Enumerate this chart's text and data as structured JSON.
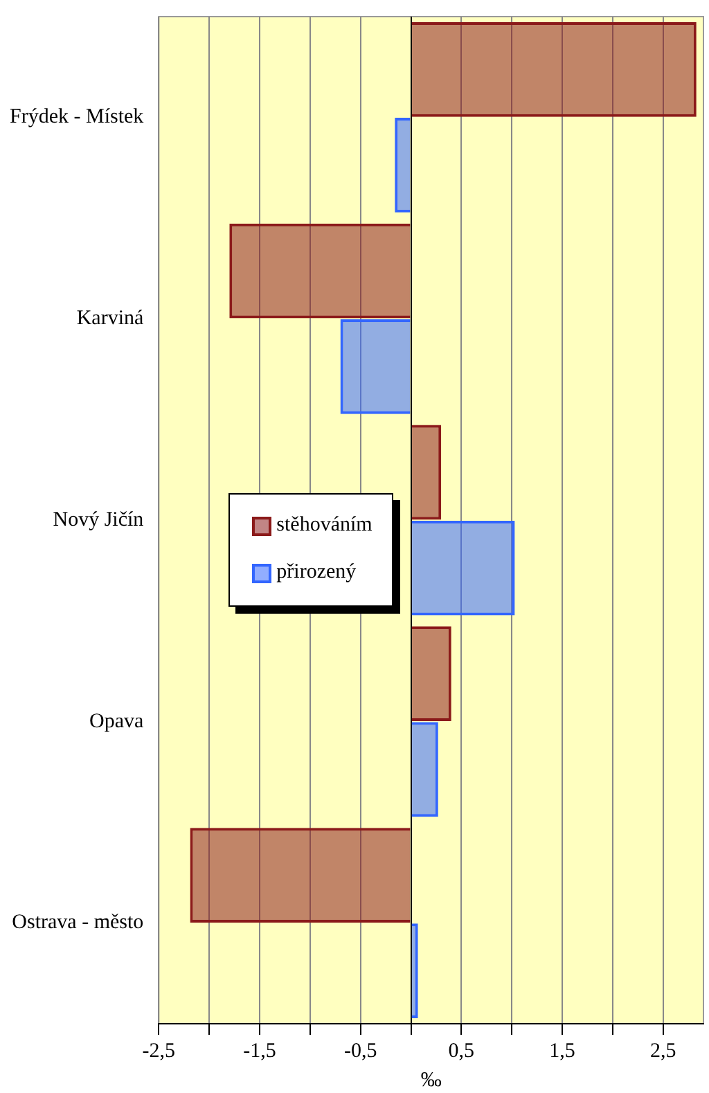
{
  "chart_data": {
    "type": "bar",
    "orientation": "horizontal",
    "xlabel": "‰",
    "categories": [
      "Frýdek - Místek",
      "Karviná",
      "Nový Jičín",
      "Opava",
      "Ostrava - město"
    ],
    "series": [
      {
        "name": "stěhováním",
        "color": "#8b1a1a",
        "values": [
          2.83,
          -1.8,
          0.3,
          0.4,
          -2.19
        ]
      },
      {
        "name": "přirozený",
        "color": "#3366ff",
        "values": [
          -0.16,
          -0.7,
          1.03,
          0.27,
          0.07
        ]
      }
    ],
    "xlim": [
      -2.5,
      2.9
    ],
    "xticks": [
      {
        "value": -2.5,
        "label": "-2,5"
      },
      {
        "value": -2,
        "label": null
      },
      {
        "value": -1.5,
        "label": "-1,5"
      },
      {
        "value": -1,
        "label": null
      },
      {
        "value": -0.5,
        "label": "-0,5"
      },
      {
        "value": 0,
        "label": null
      },
      {
        "value": 0.5,
        "label": "0,5"
      },
      {
        "value": 1,
        "label": null
      },
      {
        "value": 1.5,
        "label": "1,5"
      },
      {
        "value": 2,
        "label": null
      },
      {
        "value": 2.5,
        "label": "2,5"
      }
    ],
    "grid": "x",
    "legend": "left"
  }
}
